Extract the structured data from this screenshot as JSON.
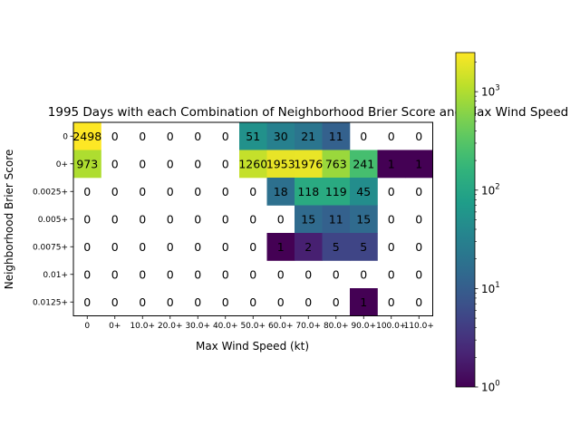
{
  "chart_data": {
    "type": "heatmap",
    "title": "1995 Days with each Combination of Neighborhood Brier Score and Max Wind Speed",
    "xlabel": "Max Wind Speed (kt)",
    "ylabel": "Neighborhood Brier Score",
    "x_categories": [
      "0",
      "0+",
      "10.0+",
      "20.0+",
      "30.0+",
      "40.0+",
      "50.0+",
      "60.0+",
      "70.0+",
      "80.0+",
      "90.0+",
      "100.0+",
      "110.0+"
    ],
    "y_categories": [
      "0",
      "0+",
      "0.0025+",
      "0.005+",
      "0.0075+",
      "0.01+",
      "0.0125+"
    ],
    "values": [
      [
        2498,
        0,
        0,
        0,
        0,
        0,
        51,
        30,
        21,
        11,
        0,
        0,
        0
      ],
      [
        973,
        0,
        0,
        0,
        0,
        0,
        1260,
        1953,
        1976,
        763,
        241,
        1,
        1
      ],
      [
        0,
        0,
        0,
        0,
        0,
        0,
        0,
        18,
        118,
        119,
        45,
        0,
        0
      ],
      [
        0,
        0,
        0,
        0,
        0,
        0,
        0,
        0,
        15,
        11,
        15,
        0,
        0
      ],
      [
        0,
        0,
        0,
        0,
        0,
        0,
        0,
        1,
        2,
        5,
        5,
        0,
        0
      ],
      [
        0,
        0,
        0,
        0,
        0,
        0,
        0,
        0,
        0,
        0,
        0,
        0,
        0
      ],
      [
        0,
        0,
        0,
        0,
        0,
        0,
        0,
        0,
        0,
        0,
        1,
        0,
        0
      ]
    ],
    "color_scale": "log",
    "colormap": "viridis",
    "zero_cells": "blank",
    "colorbar": {
      "min": 1,
      "max": 2498,
      "ticks": [
        {
          "value": 1,
          "base": "10",
          "exp": "0"
        },
        {
          "value": 10,
          "base": "10",
          "exp": "1"
        },
        {
          "value": 100,
          "base": "10",
          "exp": "2"
        },
        {
          "value": 1000,
          "base": "10",
          "exp": "3"
        }
      ]
    },
    "grid": false,
    "legend": "none"
  }
}
